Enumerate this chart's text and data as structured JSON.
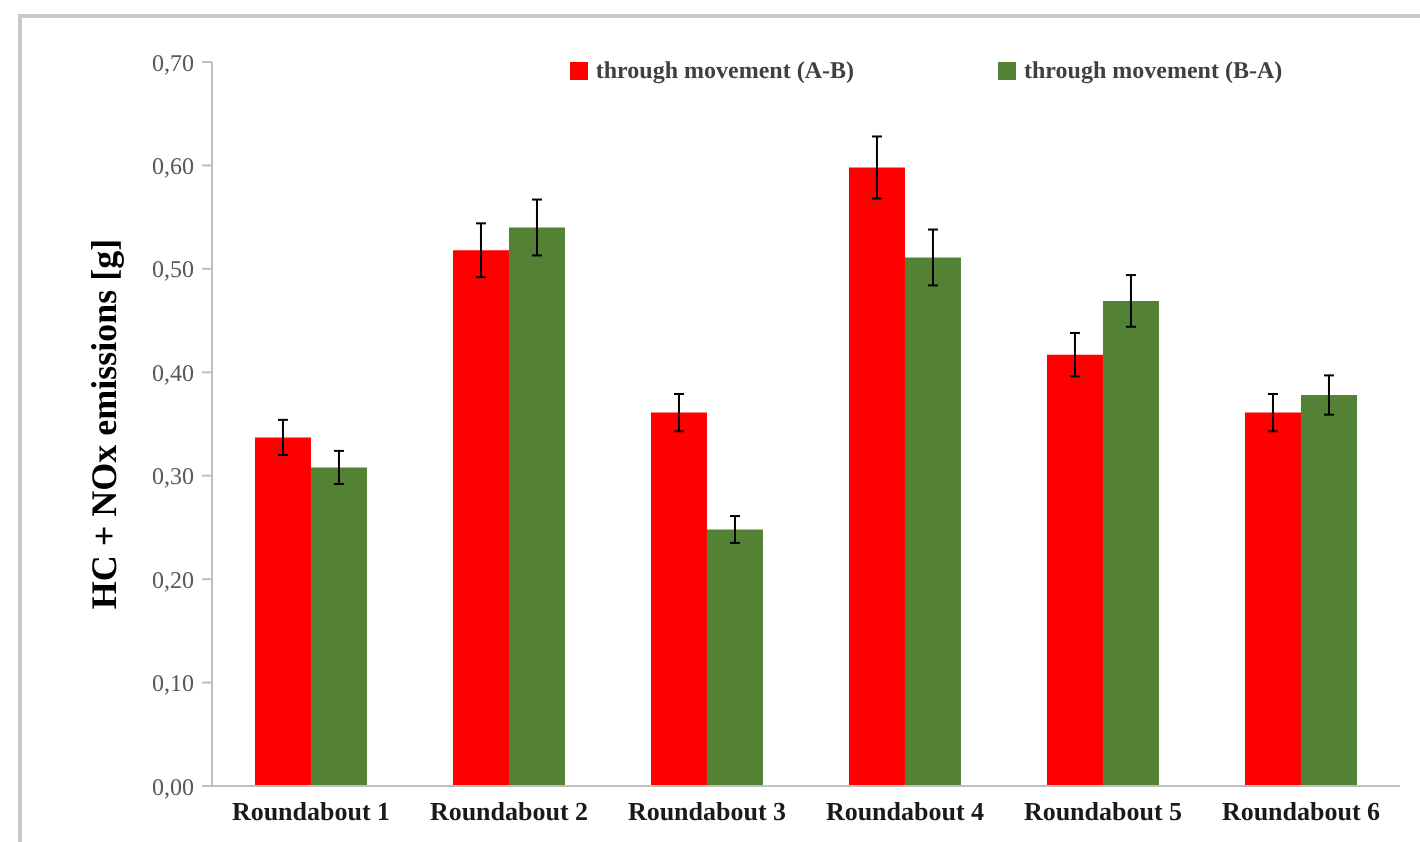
{
  "chart_data": {
    "type": "bar",
    "ylabel": "HC + NOx emissions [g]",
    "categories": [
      "Roundabout 1",
      "Roundabout 2",
      "Roundabout 3",
      "Roundabout 4",
      "Roundabout 5",
      "Roundabout 6"
    ],
    "series": [
      {
        "name": "through movement (A-B)",
        "color": "#ff0000",
        "values": [
          0.337,
          0.518,
          0.361,
          0.598,
          0.417,
          0.361
        ],
        "errors": [
          0.017,
          0.026,
          0.018,
          0.03,
          0.021,
          0.018
        ]
      },
      {
        "name": "through movement (B-A)",
        "color": "#548235",
        "values": [
          0.308,
          0.54,
          0.248,
          0.511,
          0.469,
          0.378
        ],
        "errors": [
          0.016,
          0.027,
          0.013,
          0.027,
          0.025,
          0.019
        ]
      }
    ],
    "ylim": [
      0,
      0.7
    ],
    "yticks": [
      {
        "value": 0,
        "label": "0,00"
      },
      {
        "value": 0.1,
        "label": "0,10"
      },
      {
        "value": 0.2,
        "label": "0,20"
      },
      {
        "value": 0.3,
        "label": "0,30"
      },
      {
        "value": 0.4,
        "label": "0,40"
      },
      {
        "value": 0.5,
        "label": "0,50"
      },
      {
        "value": 0.6,
        "label": "0,60"
      },
      {
        "value": 0.7,
        "label": "0,70"
      }
    ],
    "legend": "top"
  }
}
